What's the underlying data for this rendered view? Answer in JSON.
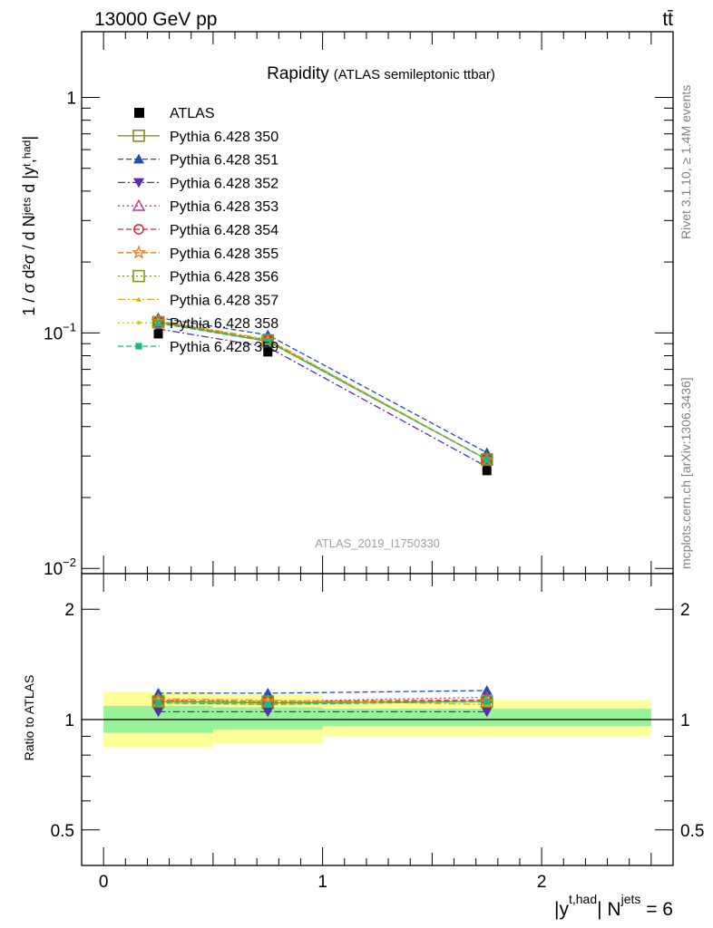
{
  "header": {
    "energy_label": "13000 GeV pp",
    "process_label": "tt̄"
  },
  "side_labels": {
    "rivet": "Rivet 3.1.10, ≥ 1.4M events",
    "mcplots": "mcplots.cern.ch [arXiv:1306.3436]"
  },
  "chart_data": [
    {
      "type": "line",
      "title": "Rapidity",
      "subtitle": "(ATLAS semileptonic ttbar)",
      "watermark": "ATLAS_2019_I1750330",
      "ylabel": "1 / σ d²σ / d Nʲᵉᵗˢ d |yᵗ,ʰᵃᵈ|",
      "yscale": "log",
      "xlim": [
        -0.1,
        2.6
      ],
      "ylim": [
        0.0095,
        1.9
      ],
      "y_tick_labels": [
        {
          "value": 1,
          "base": "1",
          "exp": ""
        },
        {
          "value": 0.1,
          "base": "10",
          "exp": "−1"
        },
        {
          "value": 0.01,
          "base": "10",
          "exp": "−2"
        }
      ],
      "legend_position": "top-left",
      "x": [
        0.25,
        0.75,
        1.75
      ],
      "data": {
        "name": "ATLAS",
        "color": "#000000",
        "values": [
          0.099,
          0.083,
          0.026
        ],
        "errors": [
          0.003,
          0.003,
          0.001
        ]
      },
      "series": [
        {
          "name": "Pythia 6.428 350",
          "color": "#8c8c1e",
          "marker": "square-open",
          "dash": "solid",
          "values": [
            0.111,
            0.092,
            0.029
          ]
        },
        {
          "name": "Pythia 6.428 351",
          "color": "#1f4fb4",
          "marker": "triangle-up",
          "dash": "dashed",
          "values": [
            0.116,
            0.098,
            0.031
          ]
        },
        {
          "name": "Pythia 6.428 352",
          "color": "#5a2ab0",
          "marker": "triangle-down",
          "dash": "dashdot",
          "values": [
            0.104,
            0.087,
            0.027
          ]
        },
        {
          "name": "Pythia 6.428 353",
          "color": "#c2348e",
          "marker": "triangle-up-open",
          "dash": "dotted",
          "values": [
            0.112,
            0.093,
            0.029
          ]
        },
        {
          "name": "Pythia 6.428 354",
          "color": "#e0202a",
          "marker": "circle-open",
          "dash": "dashed",
          "values": [
            0.112,
            0.093,
            0.029
          ]
        },
        {
          "name": "Pythia 6.428 355",
          "color": "#f07a1c",
          "marker": "star-open",
          "dash": "dashed",
          "values": [
            0.112,
            0.093,
            0.029
          ]
        },
        {
          "name": "Pythia 6.428 356",
          "color": "#7a9a1a",
          "marker": "square-open",
          "dash": "dotted",
          "values": [
            0.111,
            0.093,
            0.029
          ]
        },
        {
          "name": "Pythia 6.428 357",
          "color": "#d2b41a",
          "marker": "tri-small",
          "dash": "dashdot",
          "values": [
            0.113,
            0.094,
            0.029
          ]
        },
        {
          "name": "Pythia 6.428 358",
          "color": "#c8c81a",
          "marker": "dot-small",
          "dash": "dotted",
          "values": [
            0.11,
            0.092,
            0.029
          ]
        },
        {
          "name": "Pythia 6.428 359",
          "color": "#1cb886",
          "marker": "square-filled",
          "dash": "dashed",
          "values": [
            0.11,
            0.092,
            0.029
          ]
        }
      ]
    },
    {
      "type": "line",
      "ylabel": "Ratio to ATLAS",
      "xlabel_main": "|y",
      "xlabel_sup1": "t,had",
      "xlabel_mid": "| N",
      "xlabel_sup2": "jets",
      "xlabel_tail": " = 6",
      "yscale": "log",
      "xlim": [
        -0.1,
        2.6
      ],
      "ylim": [
        0.4,
        2.5
      ],
      "x_tick_labels": [
        {
          "value": 0,
          "label": "0"
        },
        {
          "value": 1,
          "label": "1"
        },
        {
          "value": 2,
          "label": "2"
        }
      ],
      "y_tick_labels": [
        {
          "value": 2,
          "label": "2"
        },
        {
          "value": 1,
          "label": "1"
        },
        {
          "value": 0.5,
          "label": "0.5"
        }
      ],
      "bands": [
        {
          "x": [
            0.0,
            0.5
          ],
          "inner": [
            0.92,
            1.09
          ],
          "outer": [
            0.84,
            1.19
          ]
        },
        {
          "x": [
            0.5,
            1.0
          ],
          "inner": [
            0.94,
            1.08
          ],
          "outer": [
            0.86,
            1.17
          ]
        },
        {
          "x": [
            1.0,
            2.5
          ],
          "inner": [
            0.96,
            1.07
          ],
          "outer": [
            0.9,
            1.13
          ]
        }
      ],
      "band_colors": {
        "inner": "#99f299",
        "outer": "#ffff99"
      },
      "x": [
        0.25,
        0.75,
        1.75
      ],
      "series_ratios": [
        [
          1.12,
          1.11,
          1.12
        ],
        [
          1.18,
          1.18,
          1.2
        ],
        [
          1.05,
          1.05,
          1.05
        ],
        [
          1.13,
          1.12,
          1.15
        ],
        [
          1.13,
          1.12,
          1.13
        ],
        [
          1.13,
          1.12,
          1.12
        ],
        [
          1.12,
          1.12,
          1.12
        ],
        [
          1.14,
          1.13,
          1.1
        ],
        [
          1.11,
          1.1,
          1.12
        ],
        [
          1.11,
          1.1,
          1.12
        ]
      ]
    }
  ]
}
